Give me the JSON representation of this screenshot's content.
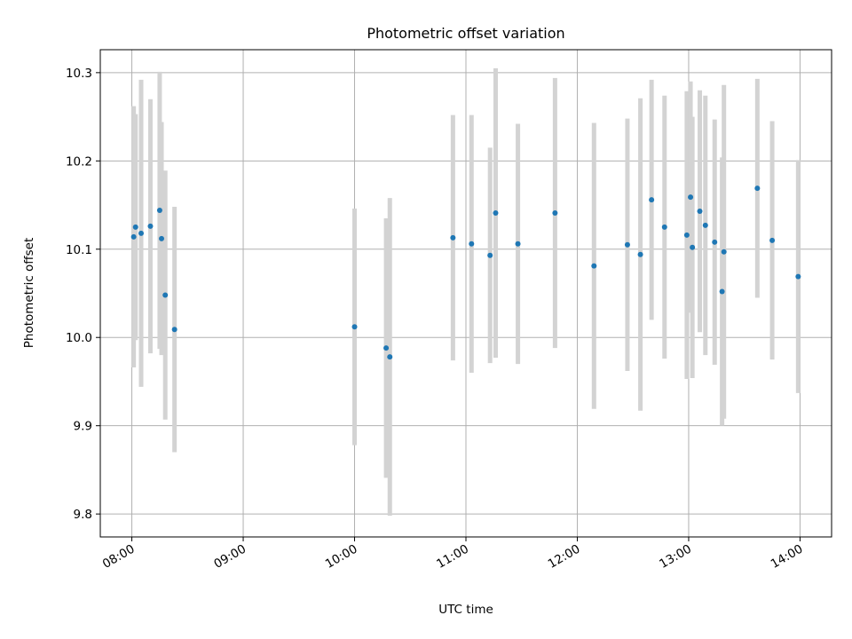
{
  "chart_data": {
    "type": "scatter",
    "title": "Photometric offset variation",
    "xlabel": "UTC time",
    "ylabel": "Photometric offset",
    "x_ticks": [
      "08:00",
      "09:00",
      "10:00",
      "11:00",
      "12:00",
      "13:00",
      "14:00"
    ],
    "y_ticks": [
      "9.8",
      "9.9",
      "10.0",
      "10.1",
      "10.2",
      "10.3"
    ],
    "xlim": [
      "07:43",
      "14:17"
    ],
    "ylim": [
      9.774,
      10.326
    ],
    "grid": true,
    "legend": "none",
    "marker_color": "#1f77b4",
    "errorbar_color": "#d3d3d3",
    "points": [
      {
        "time": "08:01",
        "y": 10.114,
        "err": 0.148
      },
      {
        "time": "08:02",
        "y": 10.125,
        "err": 0.128
      },
      {
        "time": "08:05",
        "y": 10.118,
        "err": 0.174
      },
      {
        "time": "08:10",
        "y": 10.126,
        "err": 0.144
      },
      {
        "time": "08:15",
        "y": 10.144,
        "err": 0.157
      },
      {
        "time": "08:16",
        "y": 10.112,
        "err": 0.132
      },
      {
        "time": "08:18",
        "y": 10.048,
        "err": 0.141
      },
      {
        "time": "08:23",
        "y": 10.009,
        "err": 0.139
      },
      {
        "time": "10:00",
        "y": 10.012,
        "err": 0.134
      },
      {
        "time": "10:17",
        "y": 9.988,
        "err": 0.147
      },
      {
        "time": "10:19",
        "y": 9.978,
        "err": 0.18
      },
      {
        "time": "10:53",
        "y": 10.113,
        "err": 0.139
      },
      {
        "time": "11:03",
        "y": 10.106,
        "err": 0.146
      },
      {
        "time": "11:13",
        "y": 10.093,
        "err": 0.122
      },
      {
        "time": "11:16",
        "y": 10.141,
        "err": 0.164
      },
      {
        "time": "11:28",
        "y": 10.106,
        "err": 0.136
      },
      {
        "time": "11:48",
        "y": 10.141,
        "err": 0.153
      },
      {
        "time": "12:09",
        "y": 10.081,
        "err": 0.162
      },
      {
        "time": "12:27",
        "y": 10.105,
        "err": 0.143
      },
      {
        "time": "12:34",
        "y": 10.094,
        "err": 0.177
      },
      {
        "time": "12:40",
        "y": 10.156,
        "err": 0.136
      },
      {
        "time": "12:47",
        "y": 10.125,
        "err": 0.149
      },
      {
        "time": "12:59",
        "y": 10.116,
        "err": 0.163
      },
      {
        "time": "13:01",
        "y": 10.159,
        "err": 0.131
      },
      {
        "time": "13:02",
        "y": 10.102,
        "err": 0.148
      },
      {
        "time": "13:06",
        "y": 10.143,
        "err": 0.137
      },
      {
        "time": "13:09",
        "y": 10.127,
        "err": 0.147
      },
      {
        "time": "13:14",
        "y": 10.108,
        "err": 0.139
      },
      {
        "time": "13:18",
        "y": 10.052,
        "err": 0.152
      },
      {
        "time": "13:19",
        "y": 10.097,
        "err": 0.189
      },
      {
        "time": "13:37",
        "y": 10.169,
        "err": 0.124
      },
      {
        "time": "13:45",
        "y": 10.11,
        "err": 0.135
      },
      {
        "time": "13:59",
        "y": 10.069,
        "err": 0.132
      }
    ]
  }
}
